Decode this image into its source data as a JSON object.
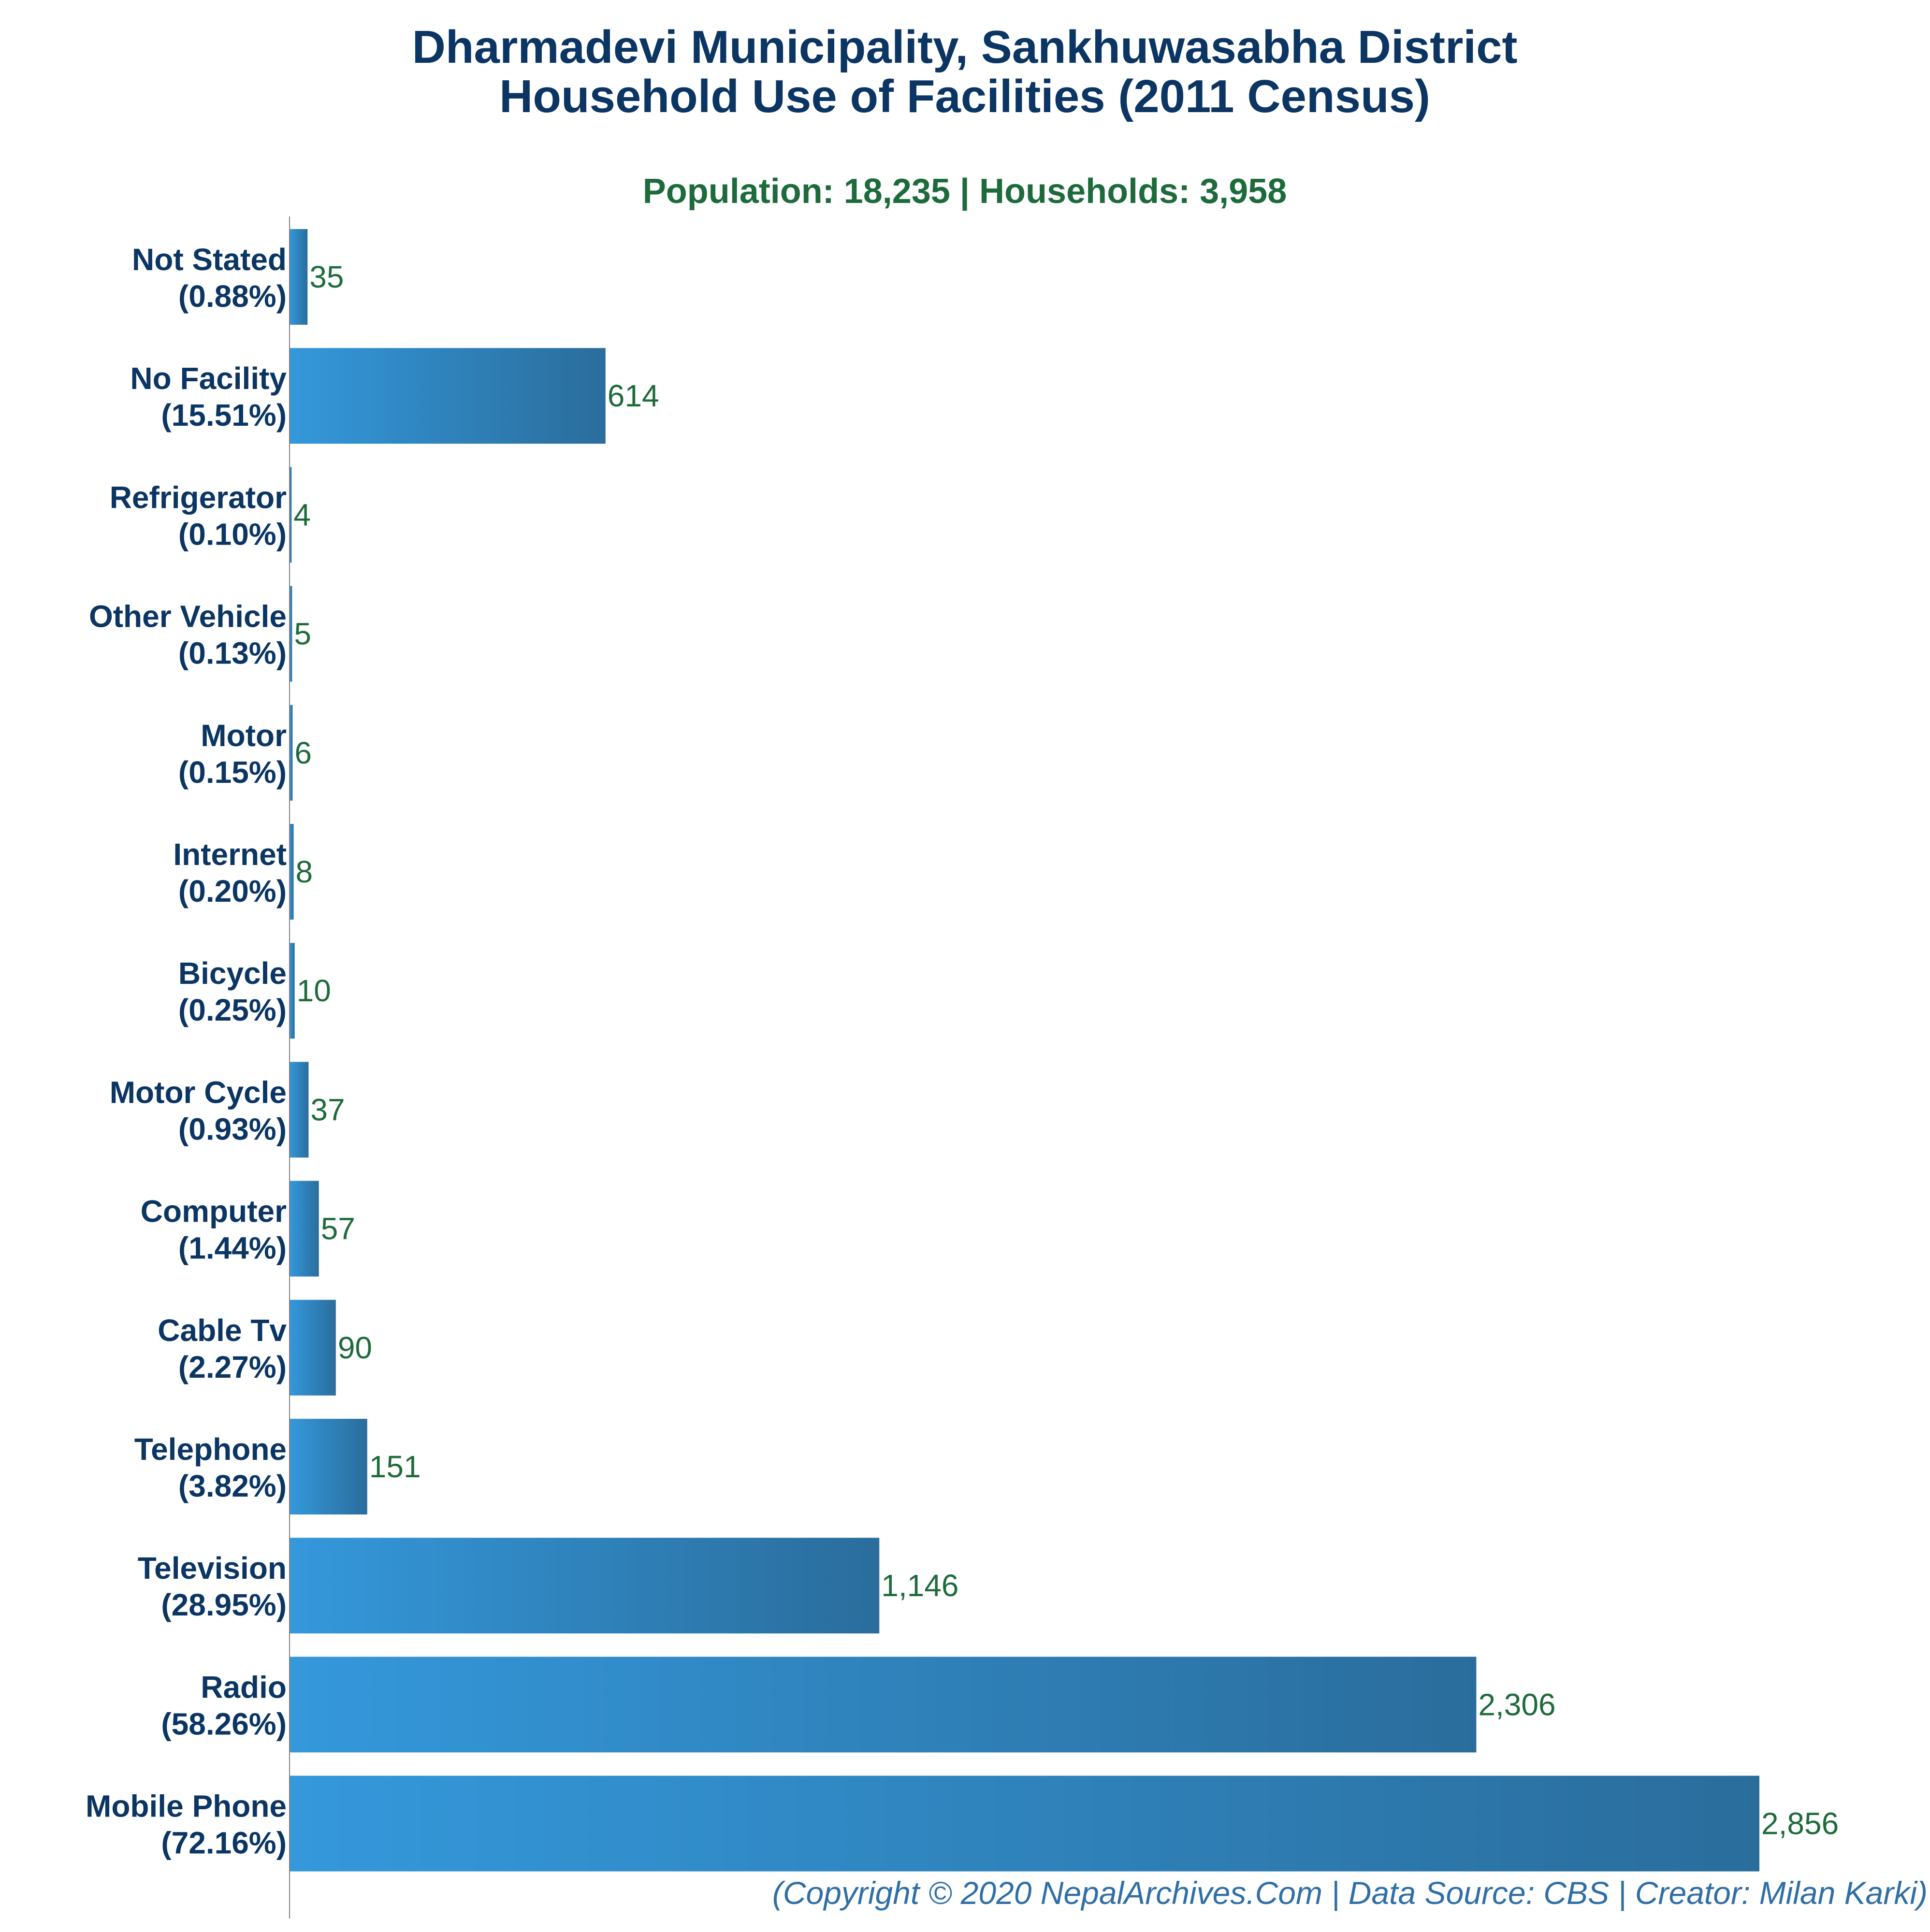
{
  "colors": {
    "title": "#0b3563",
    "subtitle": "#1d6b3a",
    "category_label": "#0b3563",
    "value_label": "#1d6b3a",
    "footer": "#2f6fa6",
    "bar_start": "#3498db",
    "bar_end": "#2a6d9c",
    "axis": "#7f7f7f"
  },
  "chart_data": {
    "type": "bar",
    "orientation": "horizontal",
    "title_line1": "Dharmadevi Municipality, Sankhuwasabha District",
    "title_line2": "Household Use of Facilities (2011 Census)",
    "subtitle": "Population: 18,235 | Households: 3,958",
    "categories": [
      {
        "name": "Not Stated",
        "pct": "(0.88%)"
      },
      {
        "name": "No Facility",
        "pct": "(15.51%)"
      },
      {
        "name": "Refrigerator",
        "pct": "(0.10%)"
      },
      {
        "name": "Other Vehicle",
        "pct": "(0.13%)"
      },
      {
        "name": "Motor",
        "pct": "(0.15%)"
      },
      {
        "name": "Internet",
        "pct": "(0.20%)"
      },
      {
        "name": "Bicycle",
        "pct": "(0.25%)"
      },
      {
        "name": "Motor Cycle",
        "pct": "(0.93%)"
      },
      {
        "name": "Computer",
        "pct": "(1.44%)"
      },
      {
        "name": "Cable Tv",
        "pct": "(2.27%)"
      },
      {
        "name": "Telephone",
        "pct": "(3.82%)"
      },
      {
        "name": "Television",
        "pct": "(28.95%)"
      },
      {
        "name": "Radio",
        "pct": "(58.26%)"
      },
      {
        "name": "Mobile Phone",
        "pct": "(72.16%)"
      }
    ],
    "values": [
      35,
      614,
      4,
      5,
      6,
      8,
      10,
      37,
      57,
      90,
      151,
      1146,
      2306,
      2856
    ],
    "value_labels": [
      "35",
      "614",
      "4",
      "5",
      "6",
      "8",
      "10",
      "37",
      "57",
      "90",
      "151",
      "1,146",
      "2,306",
      "2,856"
    ],
    "xlim": [
      0,
      2856
    ],
    "grid": false,
    "legend": "none"
  },
  "footer": "(Copyright © 2020 NepalArchives.Com | Data Source: CBS | Creator: Milan Karki)"
}
